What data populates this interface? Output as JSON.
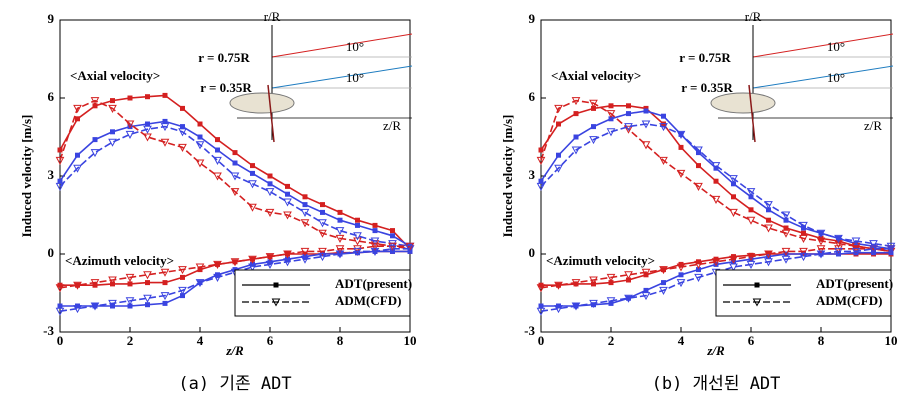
{
  "chart_data": [
    {
      "type": "line",
      "caption": "(a) 기존 ADT",
      "y_label": "Induced velocity [m/s]",
      "x_label": "z/R",
      "xlim": [
        0,
        10
      ],
      "xticks": [
        0,
        2,
        4,
        6,
        8,
        10
      ],
      "ylim": [
        -3,
        9
      ],
      "yticks": [
        -3,
        0,
        3,
        6,
        9
      ],
      "annotations": [
        "<Axial velocity>",
        "<Azimuth velocity>"
      ],
      "inset_labels": [
        "r/R",
        "r = 0.75R",
        "r = 0.35R",
        "10°",
        "10°",
        "z/R"
      ],
      "legend": [
        {
          "label": "ADT(present)",
          "style": "solid",
          "marker": "square"
        },
        {
          "label": "ADM(CFD)",
          "style": "dashed",
          "marker": "triangle"
        }
      ],
      "legend_color": "#000000",
      "x": [
        0,
        0.5,
        1,
        1.5,
        2,
        2.5,
        3,
        3.5,
        4,
        4.5,
        5,
        5.5,
        6,
        6.5,
        7,
        7.5,
        8,
        8.5,
        9,
        9.5,
        10
      ],
      "series": [
        {
          "color": "#d42020",
          "style": "solid",
          "marker": "square",
          "values": [
            4.0,
            5.2,
            5.7,
            5.9,
            6.0,
            6.05,
            6.1,
            5.6,
            5.0,
            4.4,
            3.9,
            3.4,
            3.0,
            2.6,
            2.2,
            1.9,
            1.6,
            1.3,
            1.1,
            0.9,
            0.2
          ]
        },
        {
          "color": "#3a44e0",
          "style": "solid",
          "marker": "square",
          "values": [
            2.8,
            3.8,
            4.4,
            4.7,
            4.9,
            5.0,
            5.1,
            4.9,
            4.5,
            4.0,
            3.5,
            3.1,
            2.7,
            2.3,
            1.9,
            1.6,
            1.3,
            1.1,
            0.9,
            0.7,
            0.3
          ]
        },
        {
          "color": "#d42020",
          "style": "dashed",
          "marker": "triangle",
          "values": [
            3.6,
            5.6,
            5.9,
            5.6,
            5.0,
            4.5,
            4.3,
            4.1,
            3.5,
            3.0,
            2.4,
            1.8,
            1.6,
            1.5,
            1.2,
            0.8,
            0.6,
            0.5,
            0.4,
            0.3,
            0.2
          ]
        },
        {
          "color": "#3a44e0",
          "style": "dashed",
          "marker": "triangle",
          "values": [
            2.6,
            3.3,
            3.9,
            4.3,
            4.6,
            4.8,
            4.9,
            4.7,
            4.2,
            3.6,
            3.0,
            2.7,
            2.4,
            2.0,
            1.6,
            1.2,
            0.9,
            0.7,
            0.5,
            0.4,
            0.3
          ]
        },
        {
          "color": "#d42020",
          "style": "solid",
          "marker": "square",
          "values": [
            -1.2,
            -1.2,
            -1.2,
            -1.15,
            -1.15,
            -1.1,
            -1.1,
            -0.9,
            -0.6,
            -0.4,
            -0.3,
            -0.2,
            -0.1,
            0,
            0,
            0,
            0.05,
            0.05,
            0.1,
            0.1,
            0.1
          ]
        },
        {
          "color": "#3a44e0",
          "style": "solid",
          "marker": "square",
          "values": [
            -2.0,
            -2.0,
            -2.0,
            -2.0,
            -2.0,
            -1.95,
            -1.9,
            -1.6,
            -1.1,
            -0.8,
            -0.6,
            -0.4,
            -0.3,
            -0.2,
            -0.1,
            0,
            0,
            0.05,
            0.1,
            0.1,
            0.1
          ]
        },
        {
          "color": "#d42020",
          "style": "dashed",
          "marker": "triangle",
          "values": [
            -1.3,
            -1.2,
            -1.1,
            -1.0,
            -0.9,
            -0.8,
            -0.7,
            -0.6,
            -0.5,
            -0.4,
            -0.3,
            -0.2,
            -0.1,
            0,
            0.1,
            0.1,
            0.2,
            0.2,
            0.3,
            0.3,
            0.3
          ]
        },
        {
          "color": "#3a44e0",
          "style": "dashed",
          "marker": "triangle",
          "values": [
            -2.2,
            -2.1,
            -2.0,
            -1.9,
            -1.8,
            -1.7,
            -1.6,
            -1.4,
            -1.1,
            -0.9,
            -0.7,
            -0.5,
            -0.4,
            -0.3,
            -0.2,
            -0.1,
            0,
            0.1,
            0.1,
            0.2,
            0.2
          ]
        }
      ]
    },
    {
      "type": "line",
      "caption": "(b) 개선된 ADT",
      "y_label": "Induced velocity [m/s]",
      "x_label": "z/R",
      "xlim": [
        0,
        10
      ],
      "xticks": [
        0,
        2,
        4,
        6,
        8,
        10
      ],
      "ylim": [
        -3,
        9
      ],
      "yticks": [
        -3,
        0,
        3,
        6,
        9
      ],
      "annotations": [
        "<Axial velocity>",
        "<Azimuth velocity>"
      ],
      "inset_labels": [
        "r/R",
        "r = 0.75R",
        "r = 0.35R",
        "10°",
        "10°",
        "z/R"
      ],
      "legend": [
        {
          "label": "ADT(present)",
          "style": "solid",
          "marker": "square"
        },
        {
          "label": "ADM(CFD)",
          "style": "dashed",
          "marker": "triangle"
        }
      ],
      "legend_color": "#000000",
      "x": [
        0,
        0.5,
        1,
        1.5,
        2,
        2.5,
        3,
        3.5,
        4,
        4.5,
        5,
        5.5,
        6,
        6.5,
        7,
        7.5,
        8,
        8.5,
        9,
        9.5,
        10
      ],
      "series": [
        {
          "color": "#d42020",
          "style": "solid",
          "marker": "square",
          "values": [
            4.0,
            5.0,
            5.4,
            5.6,
            5.7,
            5.7,
            5.6,
            5.0,
            4.1,
            3.4,
            2.8,
            2.2,
            1.7,
            1.3,
            1.0,
            0.8,
            0.6,
            0.5,
            0.3,
            0.2,
            0.1
          ]
        },
        {
          "color": "#3a44e0",
          "style": "solid",
          "marker": "square",
          "values": [
            2.8,
            3.8,
            4.5,
            4.9,
            5.2,
            5.4,
            5.5,
            5.3,
            4.6,
            3.9,
            3.3,
            2.7,
            2.2,
            1.7,
            1.3,
            1.0,
            0.8,
            0.6,
            0.4,
            0.3,
            0.2
          ]
        },
        {
          "color": "#d42020",
          "style": "dashed",
          "marker": "triangle",
          "values": [
            3.6,
            5.6,
            5.9,
            5.8,
            5.4,
            4.8,
            4.2,
            3.6,
            3.1,
            2.6,
            2.1,
            1.6,
            1.3,
            1.0,
            0.8,
            0.6,
            0.5,
            0.4,
            0.3,
            0.2,
            0.1
          ]
        },
        {
          "color": "#3a44e0",
          "style": "dashed",
          "marker": "triangle",
          "values": [
            2.6,
            3.3,
            4.0,
            4.4,
            4.7,
            4.9,
            5.0,
            4.9,
            4.6,
            4.0,
            3.4,
            2.9,
            2.4,
            1.9,
            1.5,
            1.1,
            0.8,
            0.6,
            0.5,
            0.4,
            0.3
          ]
        },
        {
          "color": "#d42020",
          "style": "solid",
          "marker": "square",
          "values": [
            -1.2,
            -1.2,
            -1.15,
            -1.15,
            -1.1,
            -1.0,
            -0.8,
            -0.6,
            -0.4,
            -0.3,
            -0.2,
            -0.1,
            -0.05,
            0,
            0,
            0,
            0,
            0,
            0,
            0,
            0
          ]
        },
        {
          "color": "#3a44e0",
          "style": "solid",
          "marker": "square",
          "values": [
            -2.0,
            -2.0,
            -2.0,
            -1.95,
            -1.9,
            -1.7,
            -1.4,
            -1.1,
            -0.8,
            -0.6,
            -0.4,
            -0.3,
            -0.2,
            -0.1,
            0,
            0,
            0,
            0,
            0.05,
            0.05,
            0.05
          ]
        },
        {
          "color": "#d42020",
          "style": "dashed",
          "marker": "triangle",
          "values": [
            -1.3,
            -1.2,
            -1.1,
            -1.0,
            -0.9,
            -0.8,
            -0.7,
            -0.6,
            -0.5,
            -0.4,
            -0.3,
            -0.2,
            -0.1,
            0,
            0.1,
            0.1,
            0.2,
            0.2,
            0.2,
            0.2,
            0.2
          ]
        },
        {
          "color": "#3a44e0",
          "style": "dashed",
          "marker": "triangle",
          "values": [
            -2.2,
            -2.1,
            -2.0,
            -1.9,
            -1.8,
            -1.7,
            -1.6,
            -1.4,
            -1.1,
            -0.9,
            -0.7,
            -0.5,
            -0.4,
            -0.3,
            -0.2,
            -0.1,
            0,
            0.1,
            0.1,
            0.2,
            0.2
          ]
        }
      ]
    }
  ]
}
